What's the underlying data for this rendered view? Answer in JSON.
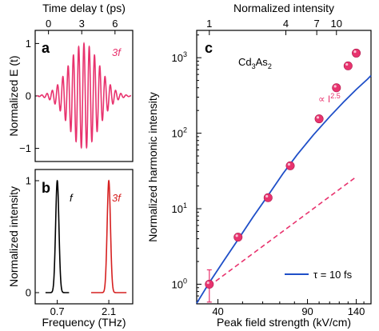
{
  "colors": {
    "pink": "#e8336e",
    "red": "#d62020",
    "blue": "#1f4fc8",
    "black": "#000000"
  },
  "chart_data": [
    {
      "panel_label": "a",
      "type": "line",
      "annotation": "3f",
      "xlabel_top": "Time delay t (ps)",
      "ylabel": "Normalized E (t)",
      "x_ticks": [
        0,
        3,
        6
      ],
      "x_ticks_labels": [
        "0",
        "3",
        "6"
      ],
      "xlim": [
        -1.2,
        7.6
      ],
      "y_ticks": [
        -1,
        0,
        1
      ],
      "y_ticks_labels": [
        "−1",
        "0",
        "1"
      ],
      "ylim": [
        -1.25,
        1.25
      ],
      "waveform": {
        "frequency_thz": 2.1,
        "center_ps": 3.2,
        "envelope_sigma_ps": 1.35,
        "amplitude": 1.0,
        "color": "#e8336e"
      }
    },
    {
      "panel_label": "b",
      "type": "line",
      "xlabel": "Frequency (THz)",
      "ylabel": "Normalized intensity",
      "x_ticks": [
        0.7,
        2.1
      ],
      "x_ticks_labels": [
        "0.7",
        "2.1"
      ],
      "xlim": [
        0.1,
        2.75
      ],
      "y_ticks": [
        0,
        1
      ],
      "y_ticks_labels": [
        "0",
        "1"
      ],
      "ylim": [
        -0.1,
        1.1
      ],
      "series": [
        {
          "name": "f",
          "center_thz": 0.7,
          "width_thz": 0.045,
          "peak": 1.0,
          "color": "#000000",
          "x_range": [
            0.38,
            1.02
          ]
        },
        {
          "name": "3f",
          "center_thz": 2.1,
          "width_thz": 0.045,
          "peak": 1.0,
          "color": "#d62020",
          "x_range": [
            1.62,
            2.58
          ]
        }
      ]
    },
    {
      "panel_label": "c",
      "type": "scatter",
      "sample_label": "Cd3As2",
      "sample_label_main": "Cd",
      "sample_label_sub1": "3",
      "sample_label_mid": "As",
      "sample_label_sub2": "2",
      "xlabel": "Peak field strength (kV/cm)",
      "xlabel_top": "Normalized intensity",
      "ylabel": "Normalized harmonic intensity",
      "xscale": "log",
      "yscale": "log",
      "xlim": [
        33,
        160
      ],
      "ylim": [
        0.55,
        2300
      ],
      "x_ticks": [
        40,
        90,
        140
      ],
      "x_ticks_labels": [
        "40",
        "90",
        "140"
      ],
      "x_top_ticks": [
        1,
        4,
        7,
        10
      ],
      "x_top_ticks_labels": [
        "1",
        "4",
        "7",
        "10"
      ],
      "x_top_reference_field": 37,
      "y_ticks": [
        1,
        10,
        100,
        1000
      ],
      "y_ticks_labels_base": [
        "10",
        "10",
        "10",
        "10"
      ],
      "y_ticks_labels_exp": [
        "0",
        "1",
        "2",
        "3"
      ],
      "points": {
        "x": [
          37,
          48,
          63,
          77,
          100,
          117,
          130,
          140
        ],
        "y": [
          1.0,
          4.2,
          14,
          37,
          155,
          400,
          780,
          1150
        ],
        "yerr_low": [
          0.42,
          0,
          0,
          0,
          0,
          0,
          0,
          0
        ],
        "yerr_high": [
          0.55,
          0,
          0,
          0,
          0,
          0,
          0,
          0
        ],
        "color": "#e8336e"
      },
      "power_law": {
        "label_prefix": "∝ I",
        "label_exponent": "2.5",
        "exponent": 2.5,
        "x_start": 37,
        "x_end": 140,
        "y_at_start": 0.95,
        "color": "#e8336e"
      },
      "model": {
        "name": "τ = 10 fs",
        "color": "#1f4fc8",
        "x": [
          33,
          37,
          42,
          48,
          55,
          63,
          72,
          82,
          95,
          110,
          125,
          140,
          155,
          160
        ],
        "y": [
          0.56,
          1.05,
          2.0,
          3.9,
          7.8,
          15,
          29,
          52,
          95,
          165,
          260,
          380,
          520,
          580
        ]
      }
    }
  ]
}
